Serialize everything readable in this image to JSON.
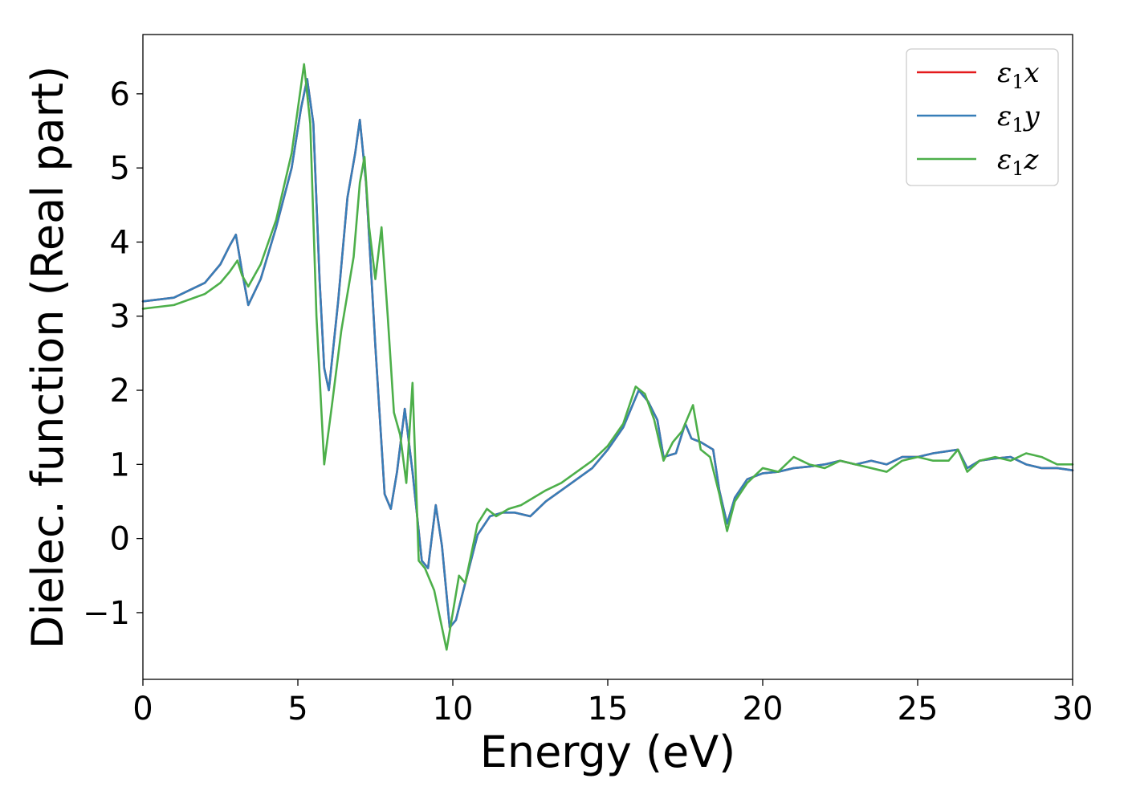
{
  "chart_data": {
    "type": "line",
    "xlabel": "Energy (eV)",
    "ylabel": "Dielec. function (Real part)",
    "xlim": [
      0,
      30
    ],
    "ylim": [
      -1.9,
      6.8
    ],
    "xticks": [
      0,
      5,
      10,
      15,
      20,
      25,
      30
    ],
    "xtick_labels": [
      "0",
      "5",
      "10",
      "15",
      "20",
      "25",
      "30"
    ],
    "yticks": [
      -1,
      0,
      1,
      2,
      3,
      4,
      5,
      6
    ],
    "ytick_labels": [
      "−1",
      "0",
      "1",
      "2",
      "3",
      "4",
      "5",
      "6"
    ],
    "grid": false,
    "legend_position": "top-right",
    "series": [
      {
        "name": "ε1x",
        "symbol": "ε",
        "subscript": "1",
        "suffix": "x",
        "color": "#e41a1c",
        "x": [
          0,
          1,
          2,
          2.5,
          2.8,
          3.0,
          3.2,
          3.4,
          3.8,
          4.3,
          4.8,
          5.1,
          5.3,
          5.5,
          5.7,
          5.85,
          6.0,
          6.3,
          6.6,
          6.85,
          7.0,
          7.2,
          7.5,
          7.8,
          8.0,
          8.2,
          8.45,
          8.7,
          9.0,
          9.2,
          9.45,
          9.65,
          9.9,
          10.1,
          10.4,
          10.8,
          11.2,
          11.6,
          12.0,
          12.5,
          13.0,
          13.5,
          14.0,
          14.5,
          15.0,
          15.5,
          16.0,
          16.3,
          16.6,
          16.8,
          17.2,
          17.5,
          17.7,
          18.0,
          18.4,
          18.6,
          18.85,
          19.1,
          19.5,
          20.0,
          20.5,
          21.0,
          21.5,
          22.0,
          22.5,
          23.0,
          23.5,
          24.0,
          24.5,
          25.0,
          25.5,
          26.0,
          26.3,
          26.6,
          27.0,
          27.5,
          28.0,
          28.5,
          29.0,
          29.5,
          30.0
        ],
        "y": [
          3.2,
          3.25,
          3.45,
          3.7,
          3.95,
          4.1,
          3.6,
          3.15,
          3.5,
          4.2,
          5.0,
          5.8,
          6.2,
          5.6,
          3.5,
          2.3,
          2.0,
          3.2,
          4.6,
          5.2,
          5.65,
          4.8,
          2.6,
          0.6,
          0.4,
          0.9,
          1.75,
          0.9,
          -0.3,
          -0.4,
          0.45,
          -0.1,
          -1.2,
          -1.1,
          -0.6,
          0.05,
          0.3,
          0.35,
          0.35,
          0.3,
          0.5,
          0.65,
          0.8,
          0.95,
          1.2,
          1.5,
          2.0,
          1.85,
          1.6,
          1.1,
          1.15,
          1.55,
          1.35,
          1.3,
          1.2,
          0.65,
          0.2,
          0.55,
          0.8,
          0.88,
          0.9,
          0.95,
          0.97,
          1.0,
          1.05,
          1.0,
          1.05,
          1.0,
          1.1,
          1.1,
          1.15,
          1.18,
          1.2,
          0.95,
          1.05,
          1.08,
          1.1,
          1.0,
          0.95,
          0.95,
          0.92
        ]
      },
      {
        "name": "ε1y",
        "symbol": "ε",
        "subscript": "1",
        "suffix": "y",
        "color": "#377eb8",
        "x": [
          0,
          1,
          2,
          2.5,
          2.8,
          3.0,
          3.2,
          3.4,
          3.8,
          4.3,
          4.8,
          5.1,
          5.3,
          5.5,
          5.7,
          5.85,
          6.0,
          6.3,
          6.6,
          6.85,
          7.0,
          7.2,
          7.5,
          7.8,
          8.0,
          8.2,
          8.45,
          8.7,
          9.0,
          9.2,
          9.45,
          9.65,
          9.9,
          10.1,
          10.4,
          10.8,
          11.2,
          11.6,
          12.0,
          12.5,
          13.0,
          13.5,
          14.0,
          14.5,
          15.0,
          15.5,
          16.0,
          16.3,
          16.6,
          16.8,
          17.2,
          17.5,
          17.7,
          18.0,
          18.4,
          18.6,
          18.85,
          19.1,
          19.5,
          20.0,
          20.5,
          21.0,
          21.5,
          22.0,
          22.5,
          23.0,
          23.5,
          24.0,
          24.5,
          25.0,
          25.5,
          26.0,
          26.3,
          26.6,
          27.0,
          27.5,
          28.0,
          28.5,
          29.0,
          29.5,
          30.0
        ],
        "y": [
          3.2,
          3.25,
          3.45,
          3.7,
          3.95,
          4.1,
          3.6,
          3.15,
          3.5,
          4.2,
          5.0,
          5.8,
          6.2,
          5.6,
          3.5,
          2.3,
          2.0,
          3.2,
          4.6,
          5.2,
          5.65,
          4.8,
          2.6,
          0.6,
          0.4,
          0.9,
          1.75,
          0.9,
          -0.3,
          -0.4,
          0.45,
          -0.1,
          -1.2,
          -1.1,
          -0.6,
          0.05,
          0.3,
          0.35,
          0.35,
          0.3,
          0.5,
          0.65,
          0.8,
          0.95,
          1.2,
          1.5,
          2.0,
          1.85,
          1.6,
          1.1,
          1.15,
          1.55,
          1.35,
          1.3,
          1.2,
          0.65,
          0.2,
          0.55,
          0.8,
          0.88,
          0.9,
          0.95,
          0.97,
          1.0,
          1.05,
          1.0,
          1.05,
          1.0,
          1.1,
          1.1,
          1.15,
          1.18,
          1.2,
          0.95,
          1.05,
          1.08,
          1.1,
          1.0,
          0.95,
          0.95,
          0.92
        ]
      },
      {
        "name": "ε1z",
        "symbol": "ε",
        "subscript": "1",
        "suffix": "z",
        "color": "#4daf4a",
        "x": [
          0,
          1,
          2,
          2.5,
          2.8,
          3.05,
          3.2,
          3.4,
          3.8,
          4.3,
          4.8,
          5.0,
          5.2,
          5.4,
          5.6,
          5.85,
          6.1,
          6.4,
          6.8,
          7.0,
          7.15,
          7.3,
          7.5,
          7.7,
          7.9,
          8.1,
          8.3,
          8.5,
          8.7,
          8.9,
          9.1,
          9.4,
          9.8,
          10.0,
          10.2,
          10.4,
          10.8,
          11.1,
          11.4,
          11.8,
          12.2,
          12.6,
          13.0,
          13.5,
          14.0,
          14.5,
          15.0,
          15.5,
          15.9,
          16.2,
          16.5,
          16.8,
          17.1,
          17.4,
          17.75,
          18.0,
          18.3,
          18.6,
          18.85,
          19.1,
          19.5,
          20.0,
          20.5,
          21.0,
          21.5,
          22.0,
          22.5,
          23.0,
          23.5,
          24.0,
          24.5,
          25.0,
          25.5,
          26.0,
          26.3,
          26.6,
          27.0,
          27.5,
          28.0,
          28.5,
          29.0,
          29.5,
          30.0
        ],
        "y": [
          3.1,
          3.15,
          3.3,
          3.45,
          3.6,
          3.75,
          3.55,
          3.4,
          3.7,
          4.3,
          5.2,
          5.8,
          6.4,
          5.6,
          3.0,
          1.0,
          1.8,
          2.8,
          3.8,
          4.8,
          5.15,
          4.2,
          3.5,
          4.2,
          3.0,
          1.7,
          1.4,
          0.75,
          2.1,
          -0.3,
          -0.4,
          -0.7,
          -1.5,
          -1.0,
          -0.5,
          -0.6,
          0.2,
          0.4,
          0.3,
          0.4,
          0.45,
          0.55,
          0.65,
          0.75,
          0.9,
          1.05,
          1.25,
          1.55,
          2.05,
          1.95,
          1.6,
          1.05,
          1.3,
          1.45,
          1.8,
          1.2,
          1.1,
          0.6,
          0.1,
          0.5,
          0.75,
          0.95,
          0.9,
          1.1,
          1.0,
          0.95,
          1.05,
          1.0,
          0.95,
          0.9,
          1.05,
          1.1,
          1.05,
          1.05,
          1.2,
          0.9,
          1.05,
          1.1,
          1.05,
          1.15,
          1.1,
          1.0,
          1.0
        ]
      }
    ]
  }
}
